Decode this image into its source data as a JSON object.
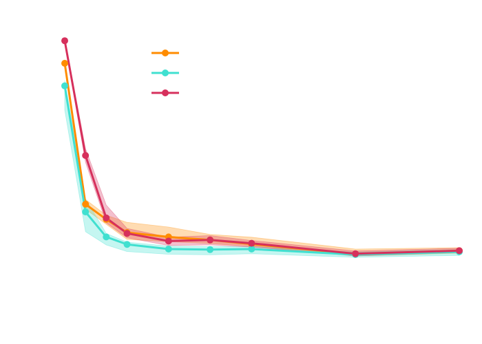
{
  "chart_data": {
    "type": "line",
    "title": "",
    "xlabel": "",
    "ylabel": "",
    "legend_placement": "top-left",
    "grid": false,
    "axes_visible": false,
    "series": [
      {
        "color": "#FF8C00",
        "x": [
          0,
          1,
          2,
          3,
          5,
          7,
          9,
          14,
          19
        ],
        "y": [
          0.87,
          0.358,
          0.303,
          0.255,
          0.239,
          0.228,
          0.213,
          0.177,
          0.189
        ],
        "band_lower": [
          0.86,
          0.34,
          0.285,
          0.23,
          0.222,
          0.215,
          0.205,
          0.17,
          0.18
        ],
        "band_upper": [
          0.88,
          0.375,
          0.318,
          0.292,
          0.275,
          0.248,
          0.238,
          0.195,
          0.2
        ]
      },
      {
        "color": "#40E0D0",
        "x": [
          0,
          1,
          2,
          3,
          5,
          7,
          9,
          14,
          19
        ],
        "y": [
          0.788,
          0.33,
          0.239,
          0.212,
          0.195,
          0.193,
          0.195,
          0.175,
          0.185
        ],
        "band_lower": [
          0.7,
          0.258,
          0.21,
          0.186,
          0.176,
          0.174,
          0.178,
          0.165,
          0.172
        ],
        "band_upper": [
          0.808,
          0.377,
          0.252,
          0.22,
          0.206,
          0.204,
          0.204,
          0.184,
          0.193
        ]
      },
      {
        "color": "#D6305C",
        "x": [
          0,
          1,
          2,
          3,
          5,
          7,
          9,
          14,
          19
        ],
        "y": [
          0.952,
          0.535,
          0.308,
          0.252,
          0.224,
          0.228,
          0.216,
          0.178,
          0.189
        ],
        "band_lower": [
          0.945,
          0.51,
          0.29,
          0.236,
          0.208,
          0.21,
          0.202,
          0.17,
          0.182
        ],
        "band_upper": [
          0.96,
          0.56,
          0.355,
          0.27,
          0.238,
          0.244,
          0.226,
          0.188,
          0.198
        ]
      }
    ]
  }
}
